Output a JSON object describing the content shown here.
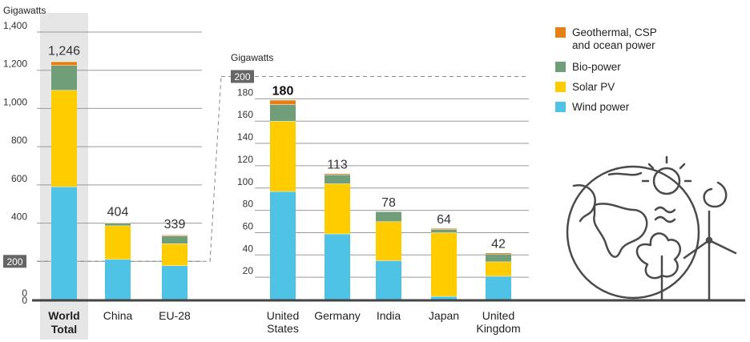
{
  "colors": {
    "wind": "#4fc3e6",
    "solar": "#ffcc00",
    "bio": "#6f9e78",
    "geo": "#e77f13",
    "highlight": "#e6e6e6",
    "badge": "#666666",
    "axis": "#444444"
  },
  "chart_data": [
    {
      "type": "bar",
      "stacked": true,
      "ylabel": "Gigawatts",
      "ylim": [
        0,
        1400
      ],
      "yticks": [
        0,
        200,
        400,
        600,
        800,
        1000,
        1200,
        1400
      ],
      "ytick_labels": [
        "0",
        "200",
        "400",
        "600",
        "800",
        "1,000",
        "1,200",
        "1,400"
      ],
      "grid": true,
      "categories": [
        [
          "World",
          "Total"
        ],
        [
          "China"
        ],
        [
          "EU-28"
        ]
      ],
      "highlight_category": 0,
      "series": [
        {
          "name": "Wind power",
          "values": [
            591,
            211,
            178
          ]
        },
        {
          "name": "Solar PV",
          "values": [
            505,
            176,
            115
          ]
        },
        {
          "name": "Bio-power",
          "values": [
            130,
            14,
            41
          ]
        },
        {
          "name": "Geothermal, CSP and ocean power",
          "values": [
            20,
            3,
            5
          ]
        }
      ],
      "totals": [
        "1,246",
        "404",
        "339"
      ]
    },
    {
      "type": "bar",
      "stacked": true,
      "ylabel": "Gigawatts",
      "ylim": [
        0,
        200
      ],
      "yticks": [
        20,
        40,
        60,
        80,
        100,
        120,
        140,
        160,
        180,
        200
      ],
      "ytick_labels": [
        "20",
        "40",
        "60",
        "80",
        "100",
        "120",
        "140",
        "160",
        "180",
        "200"
      ],
      "grid": true,
      "categories": [
        [
          "United",
          "States"
        ],
        [
          "Germany"
        ],
        [
          "India"
        ],
        [
          "Japan"
        ],
        [
          "United",
          "Kingdom"
        ]
      ],
      "series": [
        {
          "name": "Wind power",
          "values": [
            97,
            59,
            35,
            3,
            21
          ]
        },
        {
          "name": "Solar PV",
          "values": [
            63,
            45,
            35,
            57,
            13
          ]
        },
        {
          "name": "Bio-power",
          "values": [
            15,
            8,
            9,
            3,
            7
          ]
        },
        {
          "name": "Geothermal, CSP and ocean power",
          "values": [
            4,
            1,
            0,
            1,
            1
          ]
        }
      ],
      "totals": [
        "180",
        "113",
        "78",
        "64",
        "42"
      ],
      "bold_totals": [
        0
      ]
    }
  ],
  "legend": {
    "position": "top-right",
    "items": [
      {
        "label": [
          "Geothermal, CSP",
          "and ocean power"
        ],
        "color": "#e77f13"
      },
      {
        "label": [
          "Bio-power"
        ],
        "color": "#6f9e78"
      },
      {
        "label": [
          "Solar PV"
        ],
        "color": "#ffcc00"
      },
      {
        "label": [
          "Wind power"
        ],
        "color": "#4fc3e6"
      }
    ]
  },
  "icon": "earth-sun-wind-tree-illustration-icon"
}
